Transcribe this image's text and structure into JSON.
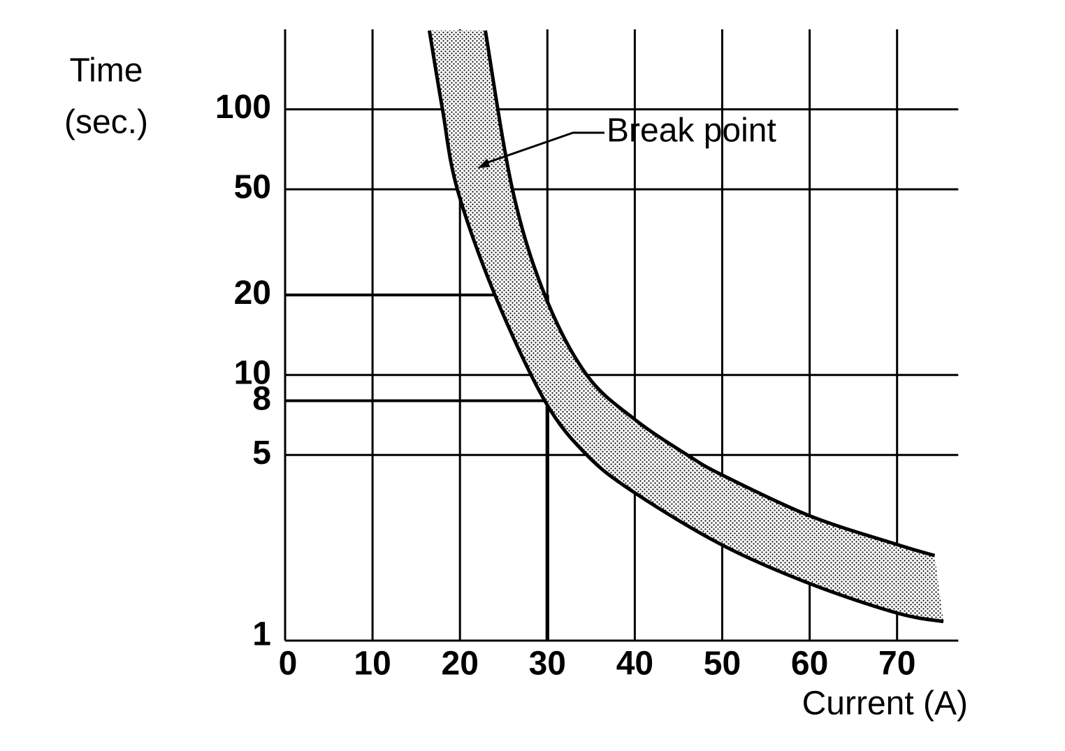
{
  "chart_data": {
    "type": "band",
    "ylabel": [
      "Time",
      "(sec.)"
    ],
    "xlabel": "Current (A)",
    "xlim": [
      0,
      77
    ],
    "ylim": [
      1,
      200
    ],
    "log_y": true,
    "xticks": [
      0,
      10,
      20,
      30,
      40,
      50,
      60,
      70
    ],
    "yticks": [
      1,
      5,
      8,
      10,
      20,
      50,
      100
    ],
    "grid_y": [
      5,
      10,
      50,
      100
    ],
    "color": "#000000",
    "series": [
      {
        "x": [
          22.9,
          26,
          29.7,
          34.5,
          40,
          46,
          50,
          60,
          70,
          74.3
        ],
        "values": [
          198,
          50,
          20,
          10,
          6.8,
          5,
          4.2,
          2.95,
          2.3,
          2.09
        ]
      },
      {
        "x": [
          16.5,
          18,
          19.7,
          24,
          29.7,
          34.5,
          40,
          50,
          60,
          70,
          75.3
        ],
        "values": [
          198,
          100,
          50,
          20,
          8,
          5,
          3.6,
          2.29,
          1.64,
          1.27,
          1.18
        ]
      }
    ],
    "reference_lines": [
      {
        "x": 30,
        "y": 20
      },
      {
        "x": 30,
        "y": 8
      }
    ],
    "annotation": {
      "text": "Break point",
      "x": 22,
      "y": 60
    }
  }
}
